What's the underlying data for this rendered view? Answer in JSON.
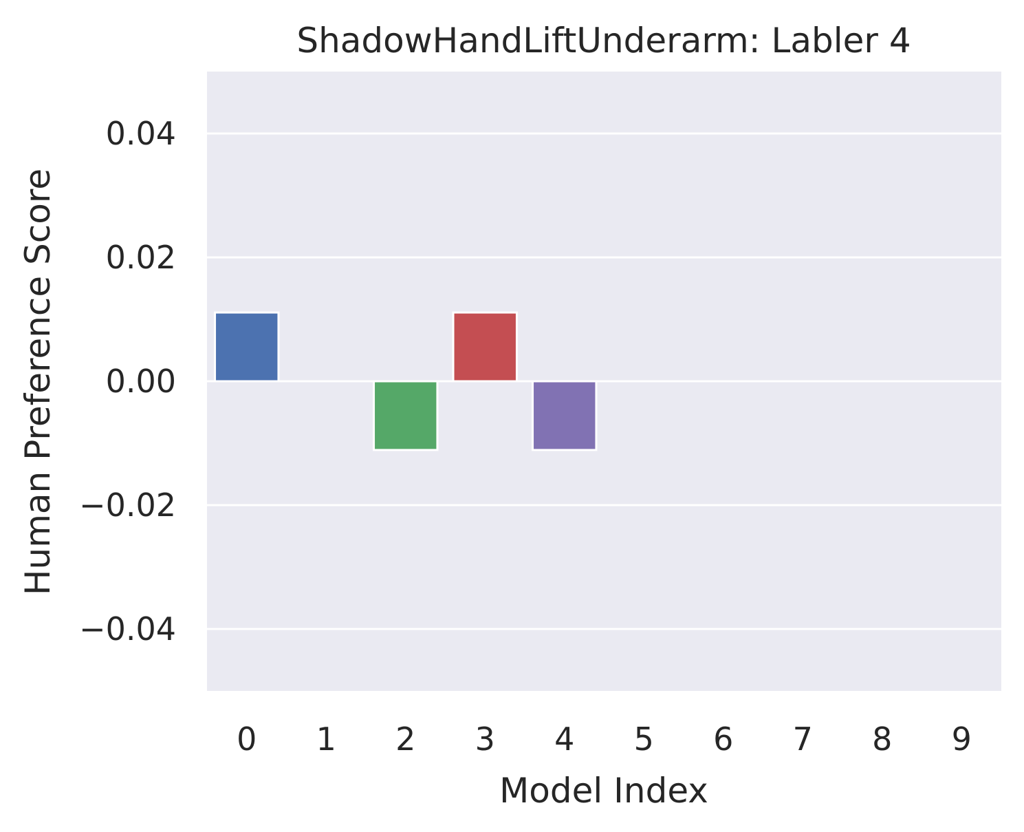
{
  "chart_data": {
    "type": "bar",
    "title": "ShadowHandLiftUnderarm: Labler 4",
    "xlabel": "Model Index",
    "ylabel": "Human Preference Score",
    "categories": [
      "0",
      "1",
      "2",
      "3",
      "4",
      "5",
      "6",
      "7",
      "8",
      "9"
    ],
    "values": [
      0.0111,
      0,
      -0.0111,
      0.0111,
      -0.0111,
      0,
      0,
      0,
      0,
      0
    ],
    "ylim": [
      -0.05,
      0.05
    ],
    "yticks": [
      0.04,
      0.02,
      0.0,
      -0.02,
      -0.04
    ],
    "ytick_labels": [
      "0.04",
      "0.02",
      "0.00",
      "−0.02",
      "−0.04"
    ],
    "grid": true,
    "colors": {
      "background": "#eaeaf2",
      "grid": "#ffffff",
      "bars": [
        "#4c72b0",
        "#dd8452",
        "#55a868",
        "#c44e52",
        "#8172b3",
        "#937860",
        "#da8bc3",
        "#8c8c8c",
        "#ccb974",
        "#64b5cd"
      ]
    }
  }
}
